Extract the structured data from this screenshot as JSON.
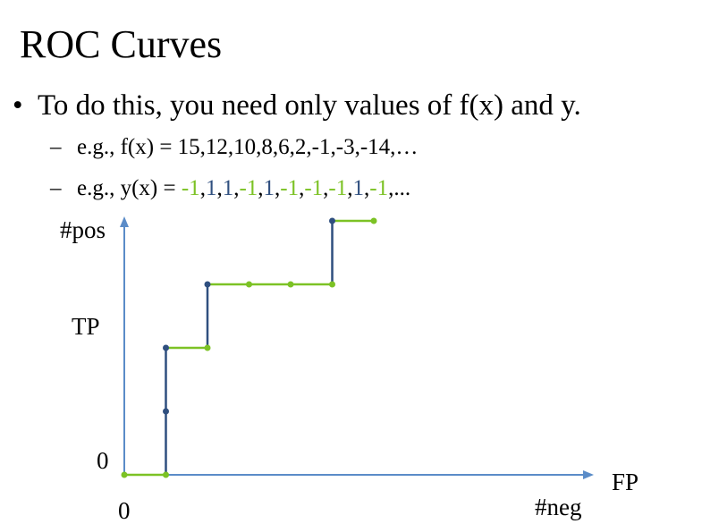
{
  "slide": {
    "title": "ROC Curves",
    "bullet": "To do this, you need only values of f(x) and y.",
    "sub1": "e.g., f(x) = 15,12,10,8,6,2,-1,-3,-14,…",
    "sub2_prefix": "e.g., y(x) = ",
    "y_values": [
      "-1",
      "1",
      "1",
      "-1",
      "1",
      "-1",
      "-1",
      "-1",
      "1",
      "-1"
    ],
    "sub2_suffix": ",..."
  },
  "colors": {
    "positive": "#2f4f7f",
    "negative": "#7cc225",
    "axis": "#5b8cc8"
  },
  "chart_data": {
    "type": "line",
    "ylabel_top": "#pos",
    "ylabel_mid": "TP",
    "ylabel_zero": "0",
    "xlabel_right": "FP",
    "xlabel_bottom": "#neg",
    "xlabel_zero": "0",
    "steps": [
      {
        "x": 0,
        "y": 0,
        "label": "-1"
      },
      {
        "x": 1,
        "y": 0,
        "label": "1"
      },
      {
        "x": 1,
        "y": 1,
        "label": "1"
      },
      {
        "x": 1,
        "y": 2,
        "label": "-1"
      },
      {
        "x": 2,
        "y": 2,
        "label": "1"
      },
      {
        "x": 2,
        "y": 3,
        "label": "-1"
      },
      {
        "x": 3,
        "y": 3,
        "label": "-1"
      },
      {
        "x": 4,
        "y": 3,
        "label": "-1"
      },
      {
        "x": 5,
        "y": 3,
        "label": "1"
      },
      {
        "x": 5,
        "y": 4,
        "label": "-1"
      },
      {
        "x": 6,
        "y": 4,
        "label": ""
      }
    ]
  }
}
